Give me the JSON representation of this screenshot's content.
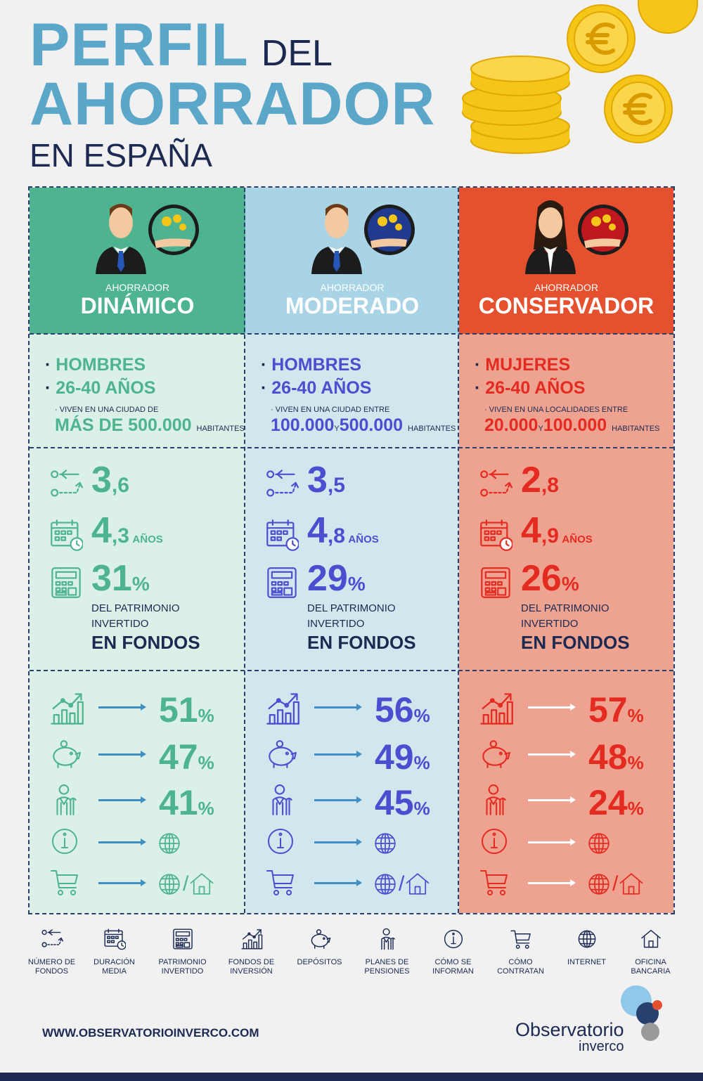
{
  "title": {
    "line1": "PERFIL",
    "line1b": "DEL",
    "line2": "AHORRADOR",
    "line3": "EN ESPAÑA"
  },
  "columns": [
    {
      "type_small": "AHORRADOR",
      "type_big": "DINÁMICO",
      "gender": "HOMBRES",
      "age": "26-40 AÑOS",
      "city_label": "VIVEN EN UNA CIUDAD DE",
      "city_a": "MÁS DE 500.000",
      "city_y": "",
      "city_b": "",
      "hab": "HABITANTES",
      "num_fondos_int": "3",
      "num_fondos_dec": ",6",
      "duracion_int": "4",
      "duracion_dec": ",3",
      "duracion_unit": "AÑOS",
      "patrimonio": "31",
      "pct": "%",
      "pat_l1": "DEL PATRIMONIO",
      "pat_l2": "INVERTIDO",
      "pat_l3": "EN FONDOS",
      "fondos_inv": "51",
      "depositos": "47",
      "planes": "41"
    },
    {
      "type_small": "AHORRADOR",
      "type_big": "MODERADO",
      "gender": "HOMBRES",
      "age": "26-40 AÑOS",
      "city_label": "VIVEN EN UNA CIUDAD ENTRE",
      "city_a": "100.000",
      "city_y": "Y",
      "city_b": "500.000",
      "hab": "HABITANTES",
      "num_fondos_int": "3",
      "num_fondos_dec": ",5",
      "duracion_int": "4",
      "duracion_dec": ",8",
      "duracion_unit": "AÑOS",
      "patrimonio": "29",
      "pct": "%",
      "pat_l1": "DEL PATRIMONIO",
      "pat_l2": "INVERTIDO",
      "pat_l3": "EN FONDOS",
      "fondos_inv": "56",
      "depositos": "49",
      "planes": "45"
    },
    {
      "type_small": "AHORRADOR",
      "type_big": "CONSERVADOR",
      "gender": "MUJERES",
      "age": "26-40 AÑOS",
      "city_label": "VIVEN EN UNA LOCALIDADES ENTRE",
      "city_a": "20.000",
      "city_y": "Y",
      "city_b": "100.000",
      "hab": "HABITANTES",
      "num_fondos_int": "2",
      "num_fondos_dec": ",8",
      "duracion_int": "4",
      "duracion_dec": ",9",
      "duracion_unit": "AÑOS",
      "patrimonio": "26",
      "pct": "%",
      "pat_l1": "DEL PATRIMONIO",
      "pat_l2": "INVERTIDO",
      "pat_l3": "EN FONDOS",
      "fondos_inv": "57",
      "depositos": "48",
      "planes": "24"
    }
  ],
  "legend": [
    {
      "l1": "NÚMERO DE",
      "l2": "FONDOS",
      "icon": "number-of-funds-icon"
    },
    {
      "l1": "DURACIÓN",
      "l2": "MEDIA",
      "icon": "calendar-icon"
    },
    {
      "l1": "PATRIMONIO",
      "l2": "INVERTIDO",
      "icon": "calculator-icon"
    },
    {
      "l1": "FONDOS DE",
      "l2": "INVERSIÓN",
      "icon": "growth-chart-icon"
    },
    {
      "l1": "DEPÓSITOS",
      "l2": "",
      "icon": "piggy-bank-icon"
    },
    {
      "l1": "PLANES DE",
      "l2": "PENSIONES",
      "icon": "elderly-person-icon"
    },
    {
      "l1": "CÓMO SE",
      "l2": "INFORMAN",
      "icon": "info-icon"
    },
    {
      "l1": "CÓMO",
      "l2": "CONTRATAN",
      "icon": "cart-icon"
    },
    {
      "l1": "INTERNET",
      "l2": "",
      "icon": "globe-icon"
    },
    {
      "l1": "OFICINA",
      "l2": "BANCARIA",
      "icon": "house-icon"
    }
  ],
  "footer": {
    "url": "WWW.OBSERVATORIOINVERCO.COM",
    "logo1": "Observatorio",
    "logo2": "inverco"
  },
  "colors": {
    "green": "#4db48f",
    "blue": "#4a4fd0",
    "red": "#e42b21",
    "navy": "#1c2a52",
    "light_blue": "#5ba7c9"
  }
}
